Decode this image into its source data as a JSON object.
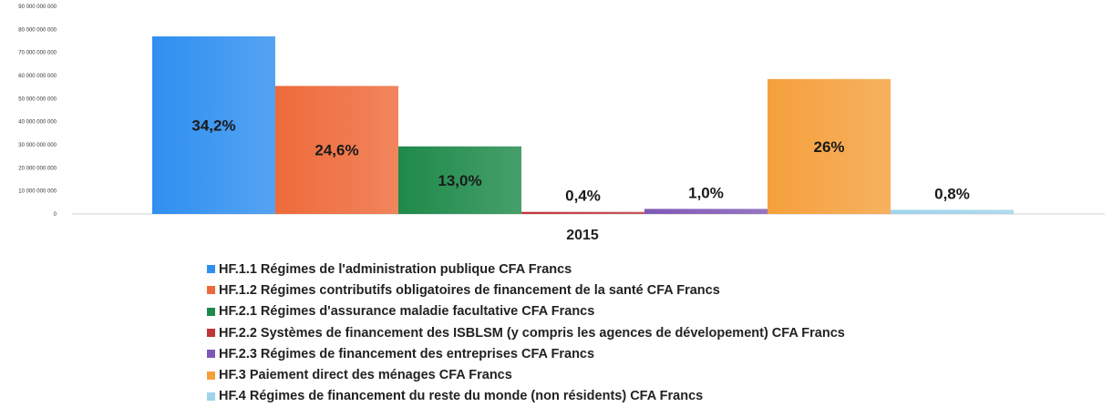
{
  "chart_data": {
    "type": "bar",
    "categories": [
      "2015"
    ],
    "ylim": [
      0,
      90000000000
    ],
    "yticks": [
      "0",
      "10 000 000 000",
      "20 000 000 000",
      "30 000 000 000",
      "40 000 000 000",
      "50 000 000 000",
      "60 000 000 000",
      "70 000 000 000",
      "80 000 000 000",
      "90 000 000 000"
    ],
    "grid": false,
    "legend_position": "bottom",
    "series": [
      {
        "name": "HF.1.1 Régimes de l'administration publique  CFA Francs",
        "values": [
          77000000000
        ],
        "label": "34,2%",
        "color": "#2f8ff0"
      },
      {
        "name": "HF.1.2 Régimes contributifs obligatoires de financement de la santé CFA Francs",
        "values": [
          55500000000
        ],
        "label": "24,6%",
        "color": "#ee6a3a"
      },
      {
        "name": "HF.2.1 Régimes d'assurance maladie facultative CFA Francs",
        "values": [
          29300000000
        ],
        "label": "13,0%",
        "color": "#1e8a4a"
      },
      {
        "name": "HF.2.2 Systèmes de financement des ISBLSM (y compris les agences de dévelopement) CFA Francs",
        "values": [
          900000000
        ],
        "label": "0,4%",
        "color": "#c0353a"
      },
      {
        "name": "HF.2.3 Régimes de financement des entreprises CFA Francs",
        "values": [
          2200000000
        ],
        "label": "1,0%",
        "color": "#7f58b5"
      },
      {
        "name": "HF.3 Paiement direct des ménages CFA Francs",
        "values": [
          58500000000
        ],
        "label": "26%",
        "color": "#f5a03c"
      },
      {
        "name": "HF.4 Régimes de financement du reste du monde (non résidents) CFA Francs",
        "values": [
          1800000000
        ],
        "label": "0,8%",
        "color": "#9fd3ea"
      }
    ]
  }
}
